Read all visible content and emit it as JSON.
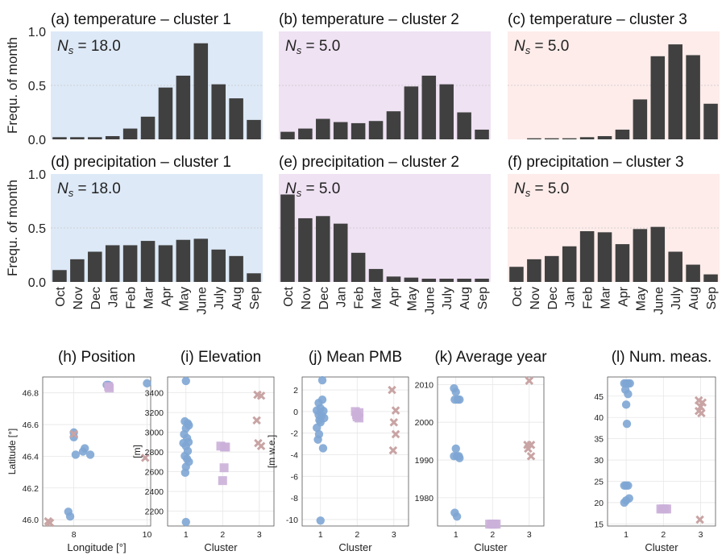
{
  "months": [
    "Oct",
    "Nov",
    "Dec",
    "Jan",
    "Feb",
    "Mar",
    "Apr",
    "May",
    "June",
    "July",
    "Aug",
    "Sep"
  ],
  "colors": {
    "bar": "#404040",
    "cluster1_bg": "#dde9f7",
    "cluster2_bg": "#efe2f3",
    "cluster3_bg": "#fdecea",
    "cluster1_marker": "#7ea6d4",
    "cluster2_marker": "#cbb0d9",
    "cluster3_marker": "#c9a4a4"
  },
  "chart_data": [
    {
      "id": "a",
      "type": "bar",
      "title": "(a) temperature – cluster 1",
      "annotation": "N_s = 18.0",
      "ylabel": "Frequ. of month",
      "ylim": [
        0,
        1
      ],
      "yticks": [
        "0.0",
        "0.5",
        "1.0"
      ],
      "cluster": 1,
      "values": [
        0.02,
        0.02,
        0.02,
        0.03,
        0.1,
        0.21,
        0.48,
        0.59,
        0.89,
        0.51,
        0.38,
        0.18
      ]
    },
    {
      "id": "b",
      "type": "bar",
      "title": "(b) temperature – cluster 2",
      "annotation": "N_s = 5.0",
      "ylim": [
        0,
        1
      ],
      "cluster": 2,
      "values": [
        0.07,
        0.1,
        0.19,
        0.16,
        0.15,
        0.17,
        0.26,
        0.49,
        0.59,
        0.51,
        0.25,
        0.09
      ]
    },
    {
      "id": "c",
      "type": "bar",
      "title": "(c) temperature – cluster 3",
      "annotation": "N_s = 5.0",
      "ylim": [
        0,
        1
      ],
      "cluster": 3,
      "values": [
        0.0,
        0.01,
        0.01,
        0.01,
        0.02,
        0.03,
        0.09,
        0.37,
        0.77,
        0.88,
        0.78,
        0.33
      ]
    },
    {
      "id": "d",
      "type": "bar",
      "title": "(d) precipitation – cluster 1",
      "annotation": "N_s = 18.0",
      "ylabel": "Frequ. of month",
      "ylim": [
        0,
        1
      ],
      "yticks": [
        "0.0",
        "0.5",
        "1.0"
      ],
      "cluster": 1,
      "values": [
        0.11,
        0.21,
        0.28,
        0.34,
        0.34,
        0.38,
        0.34,
        0.39,
        0.4,
        0.3,
        0.24,
        0.08
      ]
    },
    {
      "id": "e",
      "type": "bar",
      "title": "(e) precipitation – cluster 2",
      "annotation": "N_s = 5.0",
      "ylim": [
        0,
        1
      ],
      "cluster": 2,
      "values": [
        0.81,
        0.59,
        0.61,
        0.54,
        0.27,
        0.12,
        0.05,
        0.04,
        0.03,
        0.03,
        0.03,
        0.03
      ]
    },
    {
      "id": "f",
      "type": "bar",
      "title": "(f) precipitation – cluster 3",
      "annotation": "N_s = 5.0",
      "ylim": [
        0,
        1
      ],
      "cluster": 3,
      "values": [
        0.14,
        0.21,
        0.24,
        0.33,
        0.47,
        0.46,
        0.35,
        0.49,
        0.51,
        0.28,
        0.16,
        0.07
      ]
    },
    {
      "id": "h",
      "type": "scatter",
      "title": "(h) Position",
      "xlabel": "Longitude [°]",
      "ylabel": "Latitude [°]",
      "xlim": [
        7.15,
        10.1
      ],
      "ylim": [
        45.96,
        46.9
      ],
      "xticks": [
        8,
        10
      ],
      "yticks": [
        46.0,
        46.2,
        46.4,
        46.6,
        46.8
      ],
      "series": [
        {
          "cluster": 1,
          "marker": "circle",
          "points": [
            [
              8.9,
              46.85
            ],
            [
              8.95,
              46.85
            ],
            [
              10.0,
              46.86
            ],
            [
              8.0,
              46.55
            ],
            [
              8.0,
              46.52
            ],
            [
              8.05,
              46.41
            ],
            [
              8.25,
              46.43
            ],
            [
              8.3,
              46.45
            ],
            [
              8.45,
              46.41
            ],
            [
              7.85,
              46.05
            ],
            [
              7.9,
              46.02
            ]
          ]
        },
        {
          "cluster": 2,
          "marker": "square",
          "points": [
            [
              8.95,
              46.84
            ],
            [
              8.97,
              46.83
            ]
          ]
        },
        {
          "cluster": 3,
          "marker": "x",
          "points": [
            [
              8.0,
              46.54
            ],
            [
              9.95,
              46.39
            ],
            [
              7.3,
              45.99
            ],
            [
              7.35,
              45.98
            ]
          ]
        }
      ]
    },
    {
      "id": "i",
      "type": "scatter",
      "title": "(i) Elevation",
      "xlabel": "Cluster",
      "ylabel": "[m]",
      "xlim": [
        0.5,
        3.4
      ],
      "ylim": [
        2050,
        3560
      ],
      "xticks": [
        1,
        2,
        3
      ],
      "yticks": [
        2200,
        2400,
        2600,
        2800,
        3000,
        3200,
        3400
      ],
      "series": [
        {
          "cluster": 1,
          "marker": "circle",
          "points": [
            [
              1.0,
              3520
            ],
            [
              0.97,
              3110
            ],
            [
              1.05,
              3090
            ],
            [
              1.08,
              3070
            ],
            [
              1.0,
              3040
            ],
            [
              0.95,
              2980
            ],
            [
              1.03,
              2940
            ],
            [
              1.07,
              2900
            ],
            [
              0.93,
              2890
            ],
            [
              1.0,
              2860
            ],
            [
              1.05,
              2810
            ],
            [
              0.97,
              2760
            ],
            [
              1.03,
              2730
            ],
            [
              1.08,
              2700
            ],
            [
              1.0,
              2650
            ],
            [
              0.98,
              2590
            ],
            [
              1.0,
              2090
            ]
          ]
        },
        {
          "cluster": 2,
          "marker": "square",
          "points": [
            [
              1.95,
              2860
            ],
            [
              2.05,
              2850
            ],
            [
              2.08,
              2850
            ],
            [
              2.04,
              2640
            ],
            [
              2.0,
              2510
            ]
          ]
        },
        {
          "cluster": 3,
          "marker": "x",
          "points": [
            [
              2.95,
              3380
            ],
            [
              3.05,
              3370
            ],
            [
              2.93,
              3120
            ],
            [
              2.97,
              2890
            ],
            [
              3.05,
              2860
            ]
          ]
        }
      ]
    },
    {
      "id": "j",
      "type": "scatter",
      "title": "(j) Mean PMB",
      "xlabel": "Cluster",
      "ylabel": "[m w.e.]",
      "xlim": [
        0.5,
        3.4
      ],
      "ylim": [
        -10.6,
        3.2
      ],
      "xticks": [
        1,
        2,
        3
      ],
      "yticks": [
        -10,
        -8,
        -6,
        -4,
        -2,
        0,
        2
      ],
      "series": [
        {
          "cluster": 1,
          "marker": "circle",
          "points": [
            [
              1.05,
              2.9
            ],
            [
              1.05,
              1.1
            ],
            [
              0.95,
              0.8
            ],
            [
              1.0,
              0.3
            ],
            [
              0.9,
              0.1
            ],
            [
              1.08,
              0.05
            ],
            [
              0.95,
              -0.3
            ],
            [
              1.03,
              -0.4
            ],
            [
              1.1,
              -0.6
            ],
            [
              0.97,
              -0.8
            ],
            [
              1.0,
              -1.0
            ],
            [
              0.9,
              -1.5
            ],
            [
              0.96,
              -2.1
            ],
            [
              0.93,
              -2.6
            ],
            [
              1.07,
              -3.4
            ],
            [
              1.0,
              -10.1
            ]
          ]
        },
        {
          "cluster": 2,
          "marker": "square",
          "points": [
            [
              1.95,
              0.0
            ],
            [
              2.05,
              -0.1
            ],
            [
              1.98,
              -0.3
            ],
            [
              2.0,
              -0.5
            ],
            [
              2.05,
              -0.6
            ]
          ]
        },
        {
          "cluster": 3,
          "marker": "x",
          "points": [
            [
              2.95,
              2.0
            ],
            [
              3.05,
              0.1
            ],
            [
              3.0,
              -1.0
            ],
            [
              3.05,
              -2.1
            ],
            [
              2.98,
              -3.6
            ]
          ]
        }
      ]
    },
    {
      "id": "k",
      "type": "scatter",
      "title": "(k) Average year",
      "xlabel": "Cluster",
      "xlim": [
        0.5,
        3.4
      ],
      "ylim": [
        1972.5,
        2012
      ],
      "xticks": [
        1,
        2,
        3
      ],
      "yticks": [
        1980,
        1990,
        2000,
        2010
      ],
      "series": [
        {
          "cluster": 1,
          "marker": "circle",
          "points": [
            [
              0.95,
              2009
            ],
            [
              1.0,
              2008
            ],
            [
              0.97,
              2006
            ],
            [
              1.05,
              2006
            ],
            [
              1.1,
              2006
            ],
            [
              1.0,
              1993
            ],
            [
              0.95,
              1991
            ],
            [
              1.03,
              1991
            ],
            [
              1.08,
              1991
            ],
            [
              1.1,
              1990.5
            ],
            [
              0.97,
              1976
            ],
            [
              1.03,
              1975
            ]
          ]
        },
        {
          "cluster": 2,
          "marker": "square",
          "points": [
            [
              1.92,
              1973
            ],
            [
              1.97,
              1973
            ],
            [
              2.02,
              1973
            ],
            [
              2.07,
              1973
            ],
            [
              2.1,
              1973
            ]
          ]
        },
        {
          "cluster": 3,
          "marker": "x",
          "points": [
            [
              3.0,
              2011
            ],
            [
              2.95,
              1994
            ],
            [
              3.05,
              1994
            ],
            [
              2.97,
              1993
            ],
            [
              3.05,
              1991
            ]
          ]
        }
      ]
    },
    {
      "id": "l",
      "type": "scatter",
      "title": "(l) Num. meas.",
      "xlabel": "Cluster",
      "xlim": [
        0.5,
        3.4
      ],
      "ylim": [
        14.5,
        49.5
      ],
      "xticks": [
        1,
        2,
        3
      ],
      "yticks": [
        15,
        20,
        25,
        30,
        35,
        40,
        45
      ],
      "series": [
        {
          "cluster": 1,
          "marker": "circle",
          "points": [
            [
              0.95,
              48
            ],
            [
              1.0,
              48
            ],
            [
              1.05,
              48
            ],
            [
              1.1,
              48
            ],
            [
              0.98,
              46.5
            ],
            [
              1.05,
              45.5
            ],
            [
              1.0,
              43
            ],
            [
              1.02,
              38.5
            ],
            [
              0.95,
              24
            ],
            [
              1.0,
              24
            ],
            [
              1.05,
              24
            ],
            [
              1.08,
              21
            ],
            [
              1.0,
              20.5
            ],
            [
              0.95,
              20
            ]
          ]
        },
        {
          "cluster": 2,
          "marker": "square",
          "points": [
            [
              1.93,
              18.5
            ],
            [
              1.97,
              18.5
            ],
            [
              2.01,
              18.5
            ],
            [
              2.05,
              18.5
            ],
            [
              2.09,
              18.5
            ]
          ]
        },
        {
          "cluster": 3,
          "marker": "x",
          "points": [
            [
              2.95,
              44
            ],
            [
              3.05,
              43.5
            ],
            [
              3.0,
              42.5
            ],
            [
              2.95,
              41.5
            ],
            [
              3.02,
              41
            ],
            [
              2.98,
              16
            ]
          ]
        }
      ]
    }
  ]
}
